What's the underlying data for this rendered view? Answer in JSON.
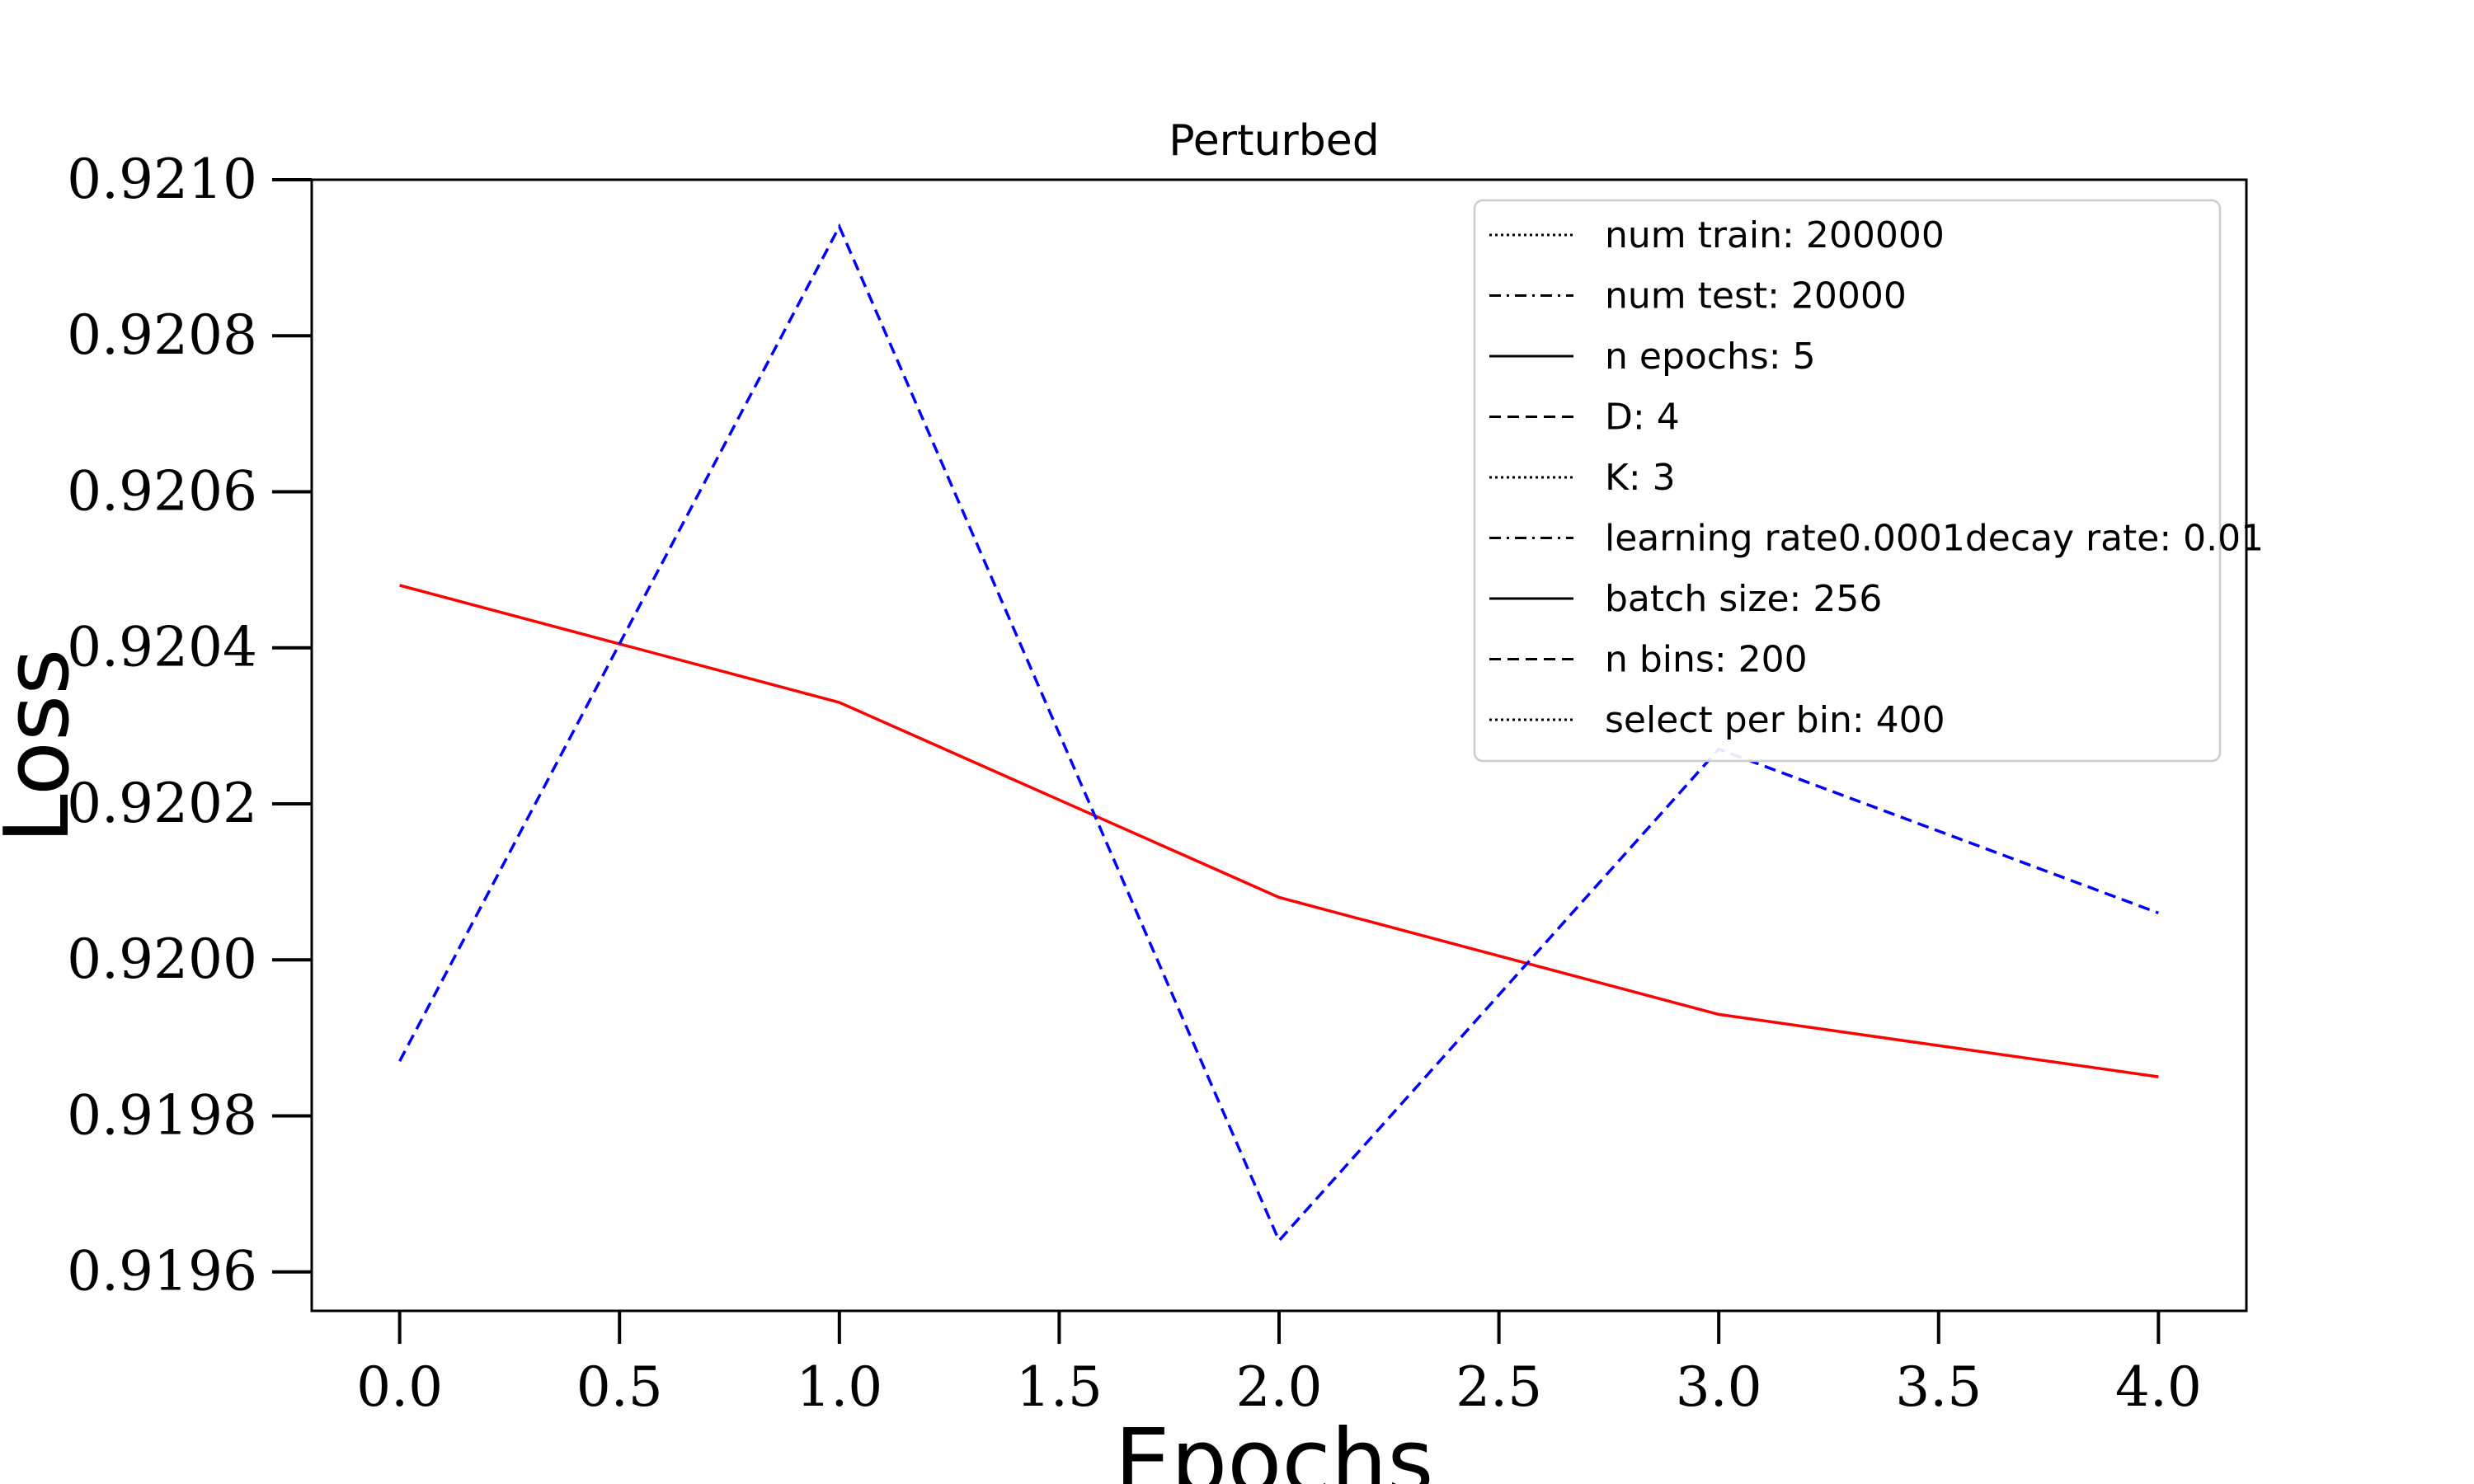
{
  "chart_data": {
    "type": "line",
    "title": "Perturbed",
    "xlabel": "Epochs",
    "ylabel": "Loss",
    "xlim": [
      -0.2,
      4.2
    ],
    "ylim": [
      0.91955,
      0.921
    ],
    "x_ticks": [
      "0.0",
      "0.5",
      "1.0",
      "1.5",
      "2.0",
      "2.5",
      "3.0",
      "3.5",
      "4.0"
    ],
    "y_ticks": [
      "0.9196",
      "0.9198",
      "0.9200",
      "0.9202",
      "0.9204",
      "0.9206",
      "0.9208",
      "0.9210"
    ],
    "grid": false,
    "legend_position": "upper right",
    "series": [
      {
        "color": "#ff0000",
        "style": "solid",
        "x": [
          0,
          1,
          2,
          3,
          4
        ],
        "y": [
          0.92048,
          0.92033,
          0.92008,
          0.91993,
          0.91985
        ]
      },
      {
        "color": "#0000ff",
        "style": "dashed",
        "x": [
          0,
          1,
          2,
          3,
          4
        ],
        "y": [
          0.91987,
          0.92094,
          0.91964,
          0.92027,
          0.92006
        ]
      }
    ],
    "legend": [
      {
        "label": "num train: 200000",
        "style": "dotted"
      },
      {
        "label": "num test: 20000",
        "style": "dashdot"
      },
      {
        "label": "n epochs: 5",
        "style": "solid"
      },
      {
        "label": "D: 4",
        "style": "dashed"
      },
      {
        "label": "K: 3",
        "style": "dotted"
      },
      {
        "label": "learning rate0.0001decay rate: 0.01",
        "style": "dashdot"
      },
      {
        "label": "batch size: 256",
        "style": "solid"
      },
      {
        "label": "n bins: 200",
        "style": "dashed"
      },
      {
        "label": "select per bin: 400",
        "style": "dotted"
      }
    ]
  }
}
